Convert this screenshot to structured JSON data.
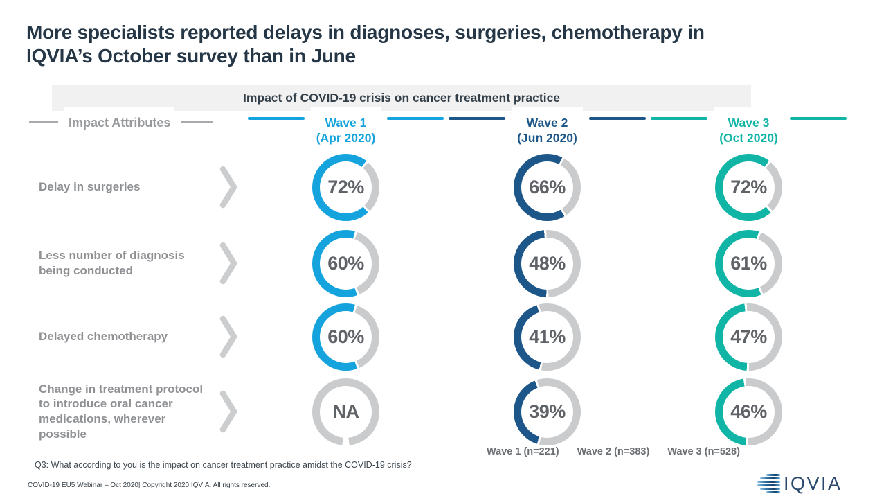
{
  "slide": {
    "title": "More specialists reported delays in diagnoses, surgeries, chemotherapy in\nIQVIA’s October survey than in June",
    "question_footnote": "Q3: What according to you is the impact on cancer treatment practice amidst the COVID-19 crisis?",
    "copyright": "COVID-19 EU5 Webinar – Oct 2020| Copyright 2020 IQVIA. All rights reserved.",
    "logo_text": "IQVIA"
  },
  "chart_data": {
    "type": "donut-grid",
    "title": "Impact of COVID-19 crisis on cancer treatment practice",
    "attributes_header": "Impact Attributes",
    "unit": "%",
    "na_label": "NA",
    "columns": [
      {
        "label": "Wave 1\n(Apr 2020)",
        "color": "#14A3DC",
        "sample_size": "Wave 1 (n=221)"
      },
      {
        "label": "Wave 2\n(Jun 2020)",
        "color": "#1D5789",
        "sample_size": "Wave 2 (n=383)"
      },
      {
        "label": "Wave 3\n(Oct 2020)",
        "color": "#10B5A6",
        "sample_size": "Wave 3 (n=528)"
      }
    ],
    "rows": [
      {
        "label": "Delay in surgeries",
        "values": [
          72,
          66,
          72
        ]
      },
      {
        "label": "Less number of diagnosis\nbeing conducted",
        "values": [
          60,
          48,
          61
        ]
      },
      {
        "label": "Delayed chemotherapy",
        "values": [
          60,
          41,
          47
        ]
      },
      {
        "label": "Change in treatment protocol\nto introduce oral cancer\nmedications, wherever\npossible",
        "values": [
          null,
          39,
          46
        ]
      }
    ]
  },
  "colors": {
    "wave1": "#14A3DC",
    "wave2": "#1D5789",
    "wave3": "#10B5A6",
    "ring_gray": "#C9CBCD",
    "pct_text": "#5F6368",
    "row_label": "#8E9093",
    "banner_bg": "#F1F1F2",
    "banner_text": "#333F48",
    "title_text": "#253746",
    "chevron": "#CBCDCF"
  }
}
